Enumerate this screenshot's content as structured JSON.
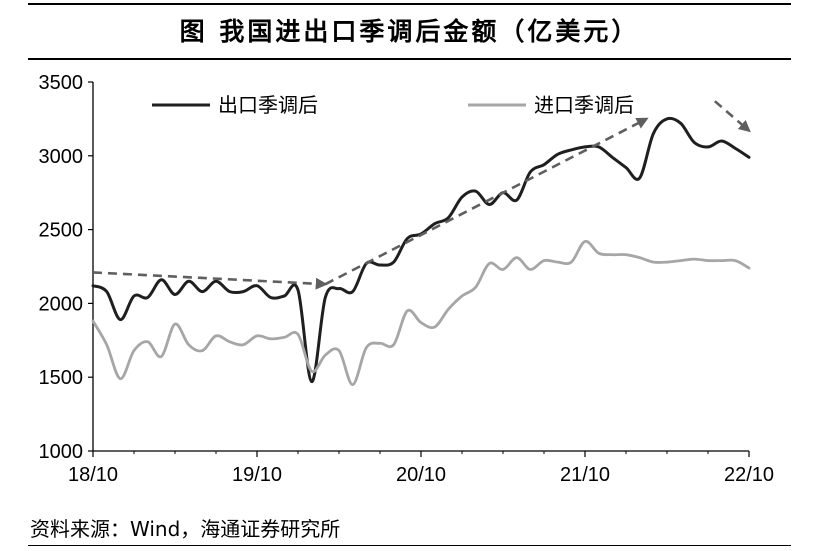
{
  "header": {
    "title": "图 我国进出口季调后金额（亿美元）"
  },
  "source": "资料来源：Wind，海通证券研究所",
  "chart_data": {
    "type": "line",
    "title": "图 我国进出口季调后金额（亿美元）",
    "xlabel": "",
    "ylabel": "",
    "ylim": [
      1000,
      3500
    ],
    "yticks": [
      1000,
      1500,
      2000,
      2500,
      3000,
      3500
    ],
    "xlim": [
      0,
      48
    ],
    "xticks": [
      {
        "label": "18/10",
        "x": 0
      },
      {
        "label": "19/10",
        "x": 12
      },
      {
        "label": "20/10",
        "x": 24
      },
      {
        "label": "21/10",
        "x": 36
      },
      {
        "label": "22/10",
        "x": 48
      }
    ],
    "legend_position": "top",
    "grid": false,
    "series": [
      {
        "name": "出口季调后",
        "color": "#1f1f1f",
        "x": [
          0,
          1,
          2,
          3,
          4,
          5,
          6,
          7,
          8,
          9,
          10,
          11,
          12,
          13,
          14,
          15,
          16,
          17,
          18,
          19,
          20,
          21,
          22,
          23,
          24,
          25,
          26,
          27,
          28,
          29,
          30,
          31,
          32,
          33,
          34,
          35,
          36,
          37,
          38,
          39,
          40,
          41,
          42,
          43,
          44,
          45,
          46,
          47,
          48
        ],
        "values": [
          2120,
          2080,
          1890,
          2050,
          2040,
          2160,
          2060,
          2150,
          2080,
          2150,
          2080,
          2080,
          2120,
          2040,
          2050,
          2090,
          1470,
          2040,
          2100,
          2080,
          2270,
          2260,
          2280,
          2440,
          2470,
          2540,
          2580,
          2720,
          2760,
          2670,
          2750,
          2700,
          2890,
          2940,
          3010,
          3040,
          3060,
          3060,
          2990,
          2920,
          2850,
          3150,
          3250,
          3220,
          3090,
          3060,
          3100,
          3050,
          2990
        ]
      },
      {
        "name": "进口季调后",
        "color": "#a6a6a6",
        "x": [
          0,
          1,
          2,
          3,
          4,
          5,
          6,
          7,
          8,
          9,
          10,
          11,
          12,
          13,
          14,
          15,
          16,
          17,
          18,
          19,
          20,
          21,
          22,
          23,
          24,
          25,
          26,
          27,
          28,
          29,
          30,
          31,
          32,
          33,
          34,
          35,
          36,
          37,
          38,
          39,
          40,
          41,
          42,
          43,
          44,
          45,
          46,
          47,
          48
        ],
        "values": [
          1880,
          1720,
          1490,
          1680,
          1740,
          1640,
          1860,
          1720,
          1680,
          1780,
          1740,
          1720,
          1780,
          1760,
          1770,
          1790,
          1540,
          1650,
          1680,
          1450,
          1700,
          1730,
          1720,
          1950,
          1870,
          1840,
          1960,
          2050,
          2110,
          2270,
          2230,
          2310,
          2230,
          2290,
          2280,
          2280,
          2420,
          2340,
          2330,
          2330,
          2310,
          2280,
          2280,
          2290,
          2300,
          2290,
          2290,
          2290,
          2240
        ]
      }
    ],
    "annotations": [
      {
        "type": "dashed-arrow",
        "from": [
          0,
          2210
        ],
        "to": [
          17,
          2130
        ]
      },
      {
        "type": "dashed-arrow",
        "from": [
          17,
          2130
        ],
        "to": [
          40.5,
          3250
        ]
      },
      {
        "type": "dashed-arrow",
        "from": [
          45.5,
          3370
        ],
        "to": [
          48,
          3170
        ]
      }
    ]
  }
}
